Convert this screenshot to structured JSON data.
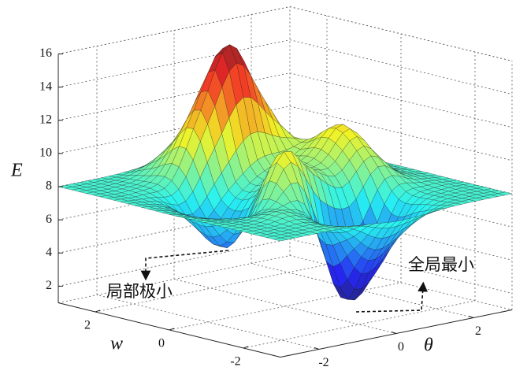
{
  "chart_data": {
    "type": "surface",
    "zlabel": "E",
    "ylabel": "w",
    "xlabel": "θ",
    "x": [
      -3,
      -2.25,
      -1.5,
      -0.75,
      0,
      0.75,
      1.5,
      2.25,
      3
    ],
    "y": [
      -3,
      -2.25,
      -1.5,
      -0.75,
      0,
      0.75,
      1.5,
      2.25,
      3
    ],
    "z": [
      [
        8.0,
        8.0,
        8.0,
        7.93,
        7.76,
        7.83,
        7.97,
        8.0,
        8.0
      ],
      [
        8.0,
        8.01,
        8.01,
        7.01,
        4.98,
        5.95,
        7.65,
        7.99,
        8.0
      ],
      [
        8.0,
        8.03,
        8.32,
        7.35,
        2.36,
        3.7,
        7.56,
        8.05,
        8.0
      ],
      [
        7.98,
        7.75,
        7.72,
        11.09,
        9.4,
        8.21,
        9.77,
        8.41,
        8.02
      ],
      [
        7.96,
        7.31,
        5.24,
        8.07,
        8.98,
        9.57,
        11.26,
        8.7,
        8.03
      ],
      [
        7.98,
        7.58,
        6.24,
        7.95,
        9.42,
        9.65,
        9.98,
        8.4,
        8.02
      ],
      [
        8.0,
        7.97,
        8.47,
        12.36,
        15.96,
        12.7,
        9.18,
        8.12,
        8.0
      ],
      [
        8.0,
        8.02,
        8.36,
        10.07,
        11.65,
        10.09,
        8.4,
        8.03,
        8.0
      ],
      [
        8.0,
        8.0,
        8.03,
        8.17,
        8.3,
        8.17,
        8.03,
        8.0,
        8.0
      ]
    ],
    "xlim": [
      -3,
      3
    ],
    "ylim": [
      -3,
      3
    ],
    "zlim": [
      1,
      16
    ],
    "xticks": [
      -2,
      0,
      2
    ],
    "yticks": [
      -2,
      0,
      2
    ],
    "zticks": [
      2,
      4,
      6,
      8,
      10,
      12,
      14,
      16
    ],
    "colormap": "jet",
    "grid": true,
    "annotations": [
      {
        "text": "局部极小"
      },
      {
        "text": "全局最小"
      }
    ]
  }
}
